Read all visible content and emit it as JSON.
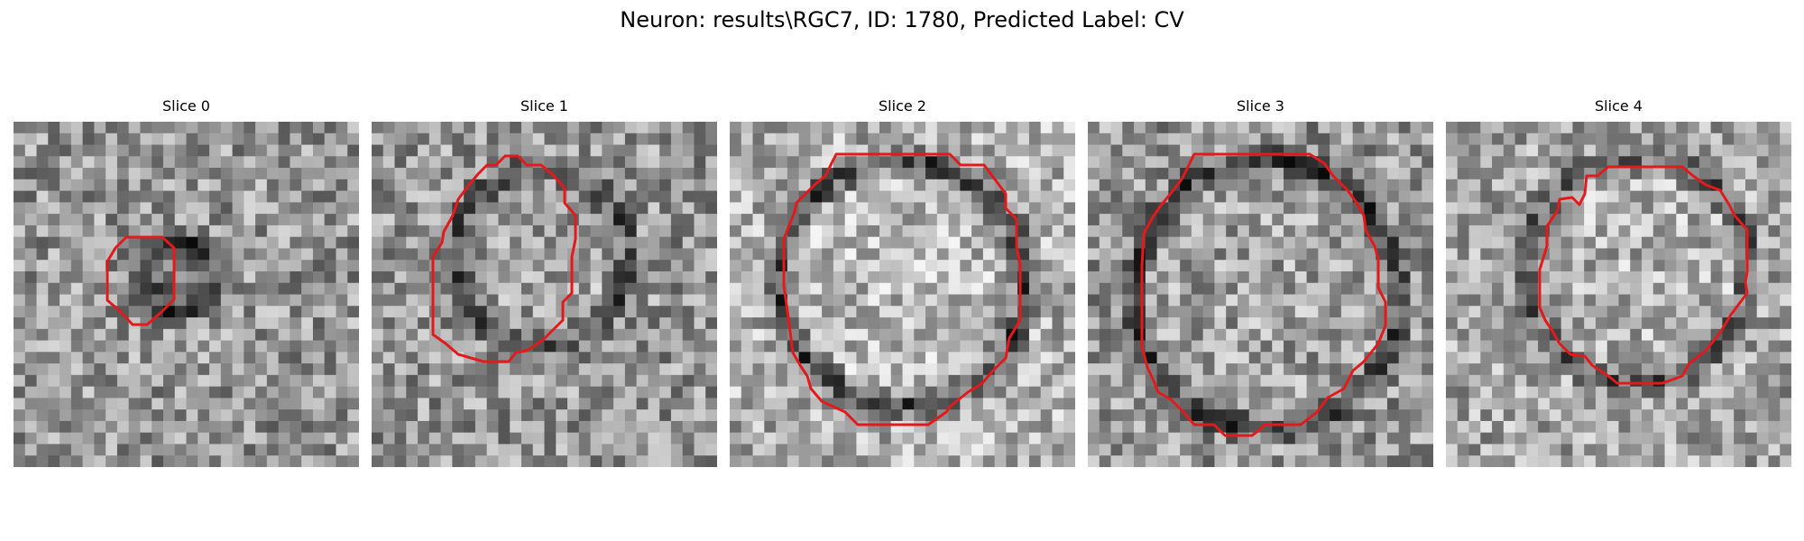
{
  "figure": {
    "title": "Neuron: results\\RGC7, ID: 1780, Predicted Label: CV"
  },
  "panels": [
    {
      "title": "Slice 0",
      "ring_color": "#e31a1c"
    },
    {
      "title": "Slice 1",
      "ring_color": "#e31a1c"
    },
    {
      "title": "Slice 2",
      "ring_color": "#e31a1c"
    },
    {
      "title": "Slice 3",
      "ring_color": "#e31a1c"
    },
    {
      "title": "Slice 4",
      "ring_color": "#e31a1c"
    }
  ],
  "colors": {
    "contour": "#e31a1c",
    "colormap": "grayscale"
  }
}
